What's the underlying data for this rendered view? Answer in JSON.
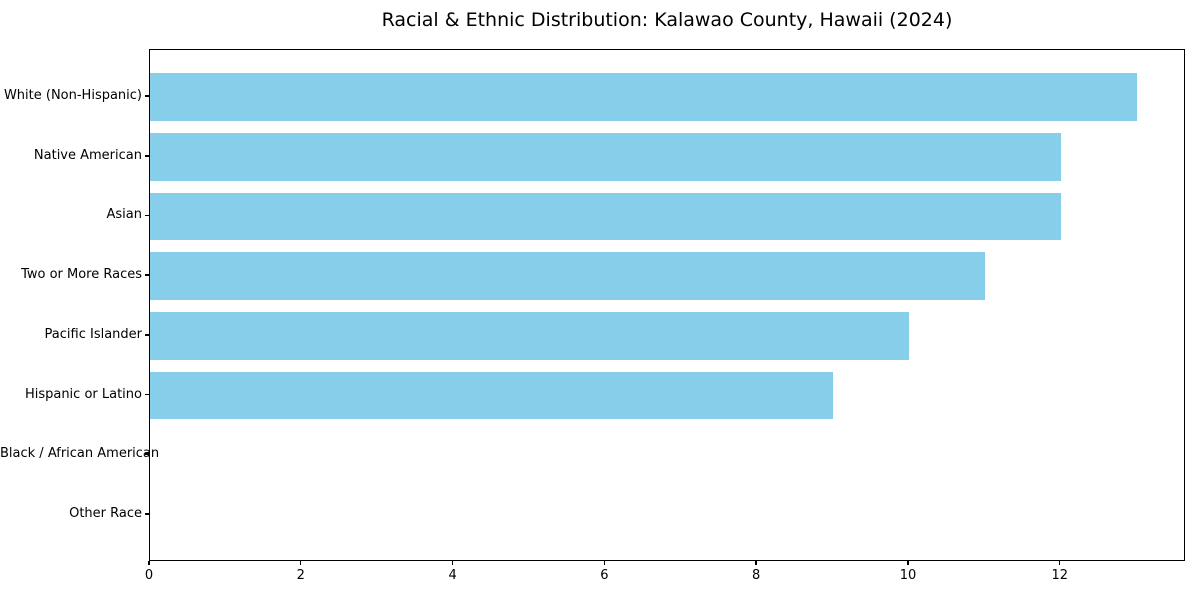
{
  "chart_data": {
    "type": "bar",
    "orientation": "horizontal",
    "title": "Racial & Ethnic Distribution: Kalawao County, Hawaii (2024)",
    "categories": [
      "White (Non-Hispanic)",
      "Native American",
      "Asian",
      "Two or More Races",
      "Pacific Islander",
      "Hispanic or Latino",
      "Black / African American",
      "Other Race"
    ],
    "values": [
      13,
      12,
      12,
      11,
      10,
      9,
      0,
      0
    ],
    "xlabel": "",
    "ylabel": "",
    "xlim": [
      0,
      13.65
    ],
    "xticks": [
      0,
      2,
      4,
      6,
      8,
      10,
      12
    ],
    "bar_color": "#87CEEB",
    "bar_height_fraction": 0.8,
    "grid": false,
    "legend": null,
    "text_color": "#000000",
    "background_color": "#ffffff",
    "spine_color": "#000000"
  }
}
